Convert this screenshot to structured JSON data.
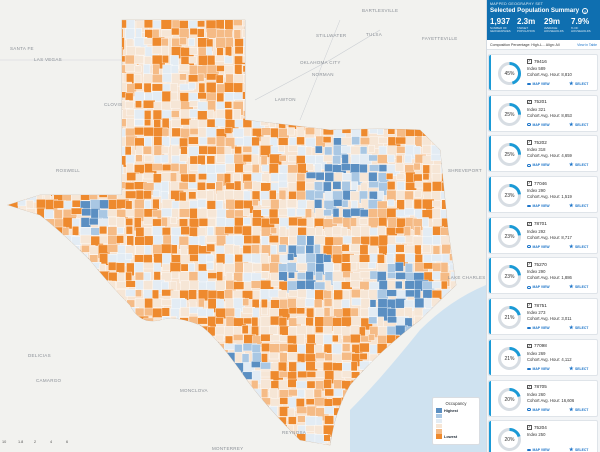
{
  "panel": {
    "kicker": "MAPPED GEOGRAPHY SET",
    "title": "Selected Population Summary",
    "stats": [
      {
        "value": "1,937",
        "label": "NUMBER OF GEOGRAPHIES"
      },
      {
        "value": "2.3m",
        "label": "TARGET POPULATION"
      },
      {
        "value": "29m",
        "label": "AVERAGE HOUSEHOLDS"
      },
      {
        "value": "7.9%",
        "label": "% OF HOUSEHOLDS"
      }
    ],
    "sort_label": "Composition Percentage: High-L...",
    "sort_extra": "Align: All",
    "view_link": "View in Table"
  },
  "cards": [
    {
      "pct": 45,
      "zip": "79416",
      "index": "Index 589",
      "cohort": "Cohort Avg. Hour: 8,810"
    },
    {
      "pct": 25,
      "zip": "75201",
      "index": "Index 321",
      "cohort": "Cohort Avg. Hour: 8,853"
    },
    {
      "pct": 25,
      "zip": "75202",
      "index": "Index 318",
      "cohort": "Cohort Avg. Hour: 4,659"
    },
    {
      "pct": 23,
      "zip": "77046",
      "index": "Index 290",
      "cohort": "Cohort Avg. Hour: 1,519"
    },
    {
      "pct": 23,
      "zip": "78701",
      "index": "Index 292",
      "cohort": "Cohort Avg. Hour: 8,717"
    },
    {
      "pct": 23,
      "zip": "75270",
      "index": "Index 290",
      "cohort": "Cohort Avg. Hour: 1,886"
    },
    {
      "pct": 21,
      "zip": "78751",
      "index": "Index 273",
      "cohort": "Cohort Avg. Hour: 3,011"
    },
    {
      "pct": 21,
      "zip": "77098",
      "index": "Index 269",
      "cohort": "Cohort Avg. Hour: 4,112"
    },
    {
      "pct": 20,
      "zip": "78705",
      "index": "Index 260",
      "cohort": "Cohort Avg. Hour: 16,606"
    },
    {
      "pct": 20,
      "zip": "75204",
      "index": "Index 250",
      "cohort": ""
    }
  ],
  "card_actions": {
    "map_view": "MAP VIEW",
    "select": "SELECT"
  },
  "legend": {
    "title": "Occupancy",
    "highest": "Highest",
    "lowest": "Lowest",
    "colors": [
      "#5b8fc2",
      "#a9c7e3",
      "#e3ecf4",
      "#f6e6d6",
      "#f5bb86",
      "#ee8a2e"
    ]
  },
  "map_labels": [
    {
      "text": "SANTA FE"
    },
    {
      "text": "LAS VEGAS"
    },
    {
      "text": "CLOVIS"
    },
    {
      "text": "ROSWELL"
    },
    {
      "text": "OKLAHOMA CITY"
    },
    {
      "text": "NORMAN"
    },
    {
      "text": "LAWTON"
    },
    {
      "text": "TULSA"
    },
    {
      "text": "STILLWATER"
    },
    {
      "text": "BARTLESVILLE"
    },
    {
      "text": "FAYETTEVILLE"
    },
    {
      "text": "SHREVEPORT"
    },
    {
      "text": "LAKE CHARLES"
    },
    {
      "text": "DELICIAS"
    },
    {
      "text": "CAMARGO"
    },
    {
      "text": "MONTERREY"
    },
    {
      "text": "MONCLOVA"
    },
    {
      "text": "REYNOSA"
    }
  ],
  "scale": [
    "10",
    "1.8",
    "2",
    "4",
    "6"
  ],
  "colors": {
    "accent": "#1a9ad6",
    "header": "#0f6fb0",
    "water": "#cfe2f0"
  }
}
